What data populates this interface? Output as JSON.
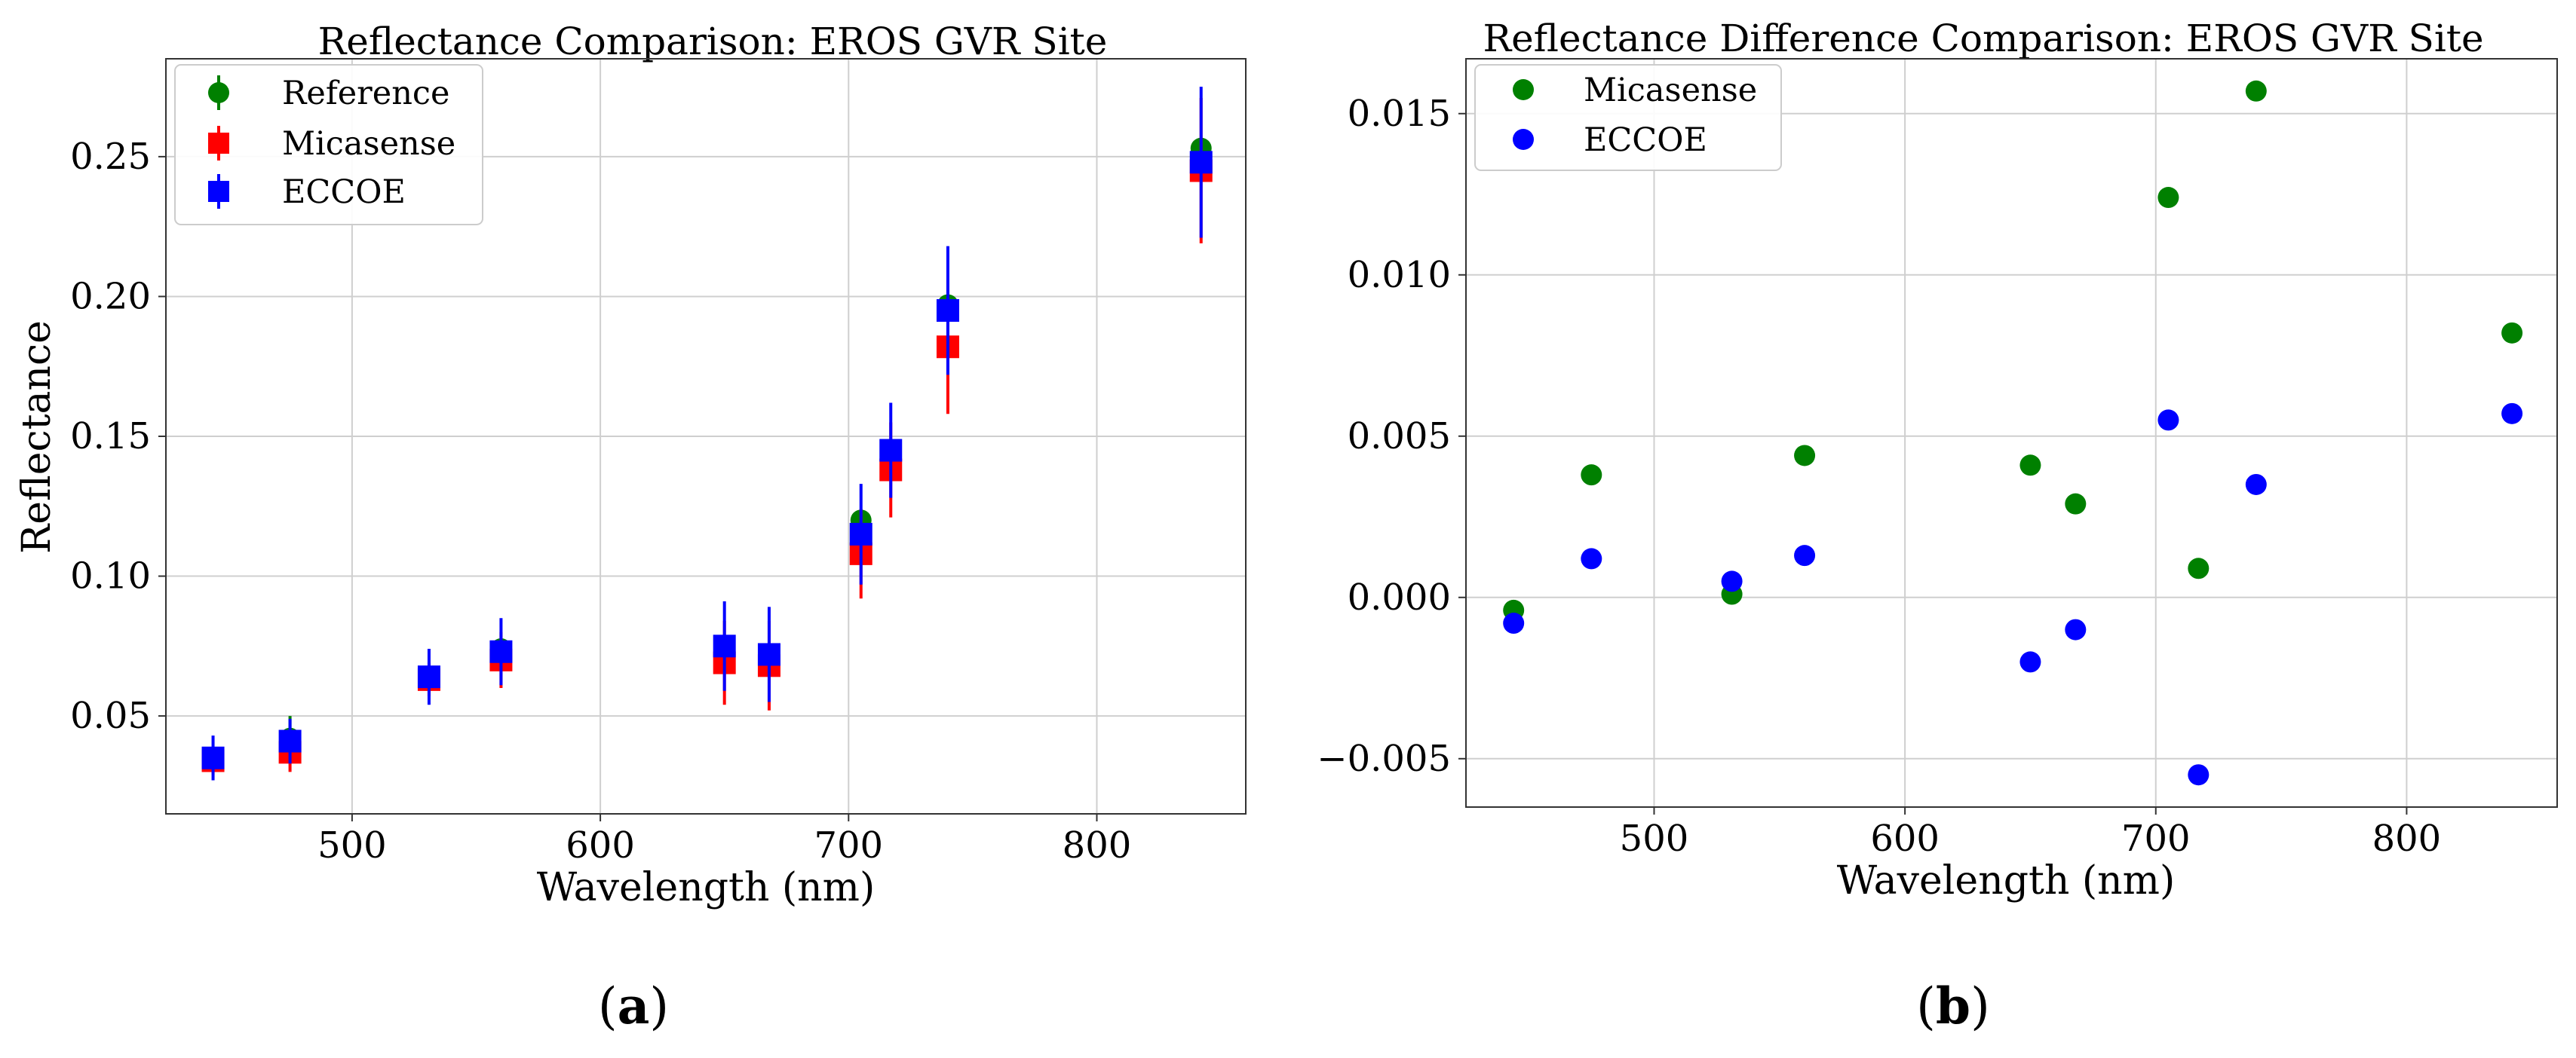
{
  "chart_data": [
    {
      "type": "scatter",
      "panel_label": "a",
      "title": "Reflectance Comparison: EROS GVR Site",
      "xlabel": "Wavelength (nm)",
      "ylabel": "Reflectance",
      "xlim": [
        425,
        860
      ],
      "ylim": [
        0.015,
        0.285
      ],
      "xticks": [
        500,
        600,
        700,
        800
      ],
      "yticks": [
        0.05,
        0.1,
        0.15,
        0.2,
        0.25
      ],
      "xtick_labels": [
        "500",
        "600",
        "700",
        "800"
      ],
      "ytick_labels": [
        "0.05",
        "0.10",
        "0.15",
        "0.20",
        "0.25"
      ],
      "grid": true,
      "legend_position": "top-left",
      "x": [
        444,
        475,
        531,
        560,
        650,
        668,
        705,
        717,
        740,
        842
      ],
      "series": [
        {
          "name": "Reference",
          "marker": "circle",
          "color": "#008000",
          "values": [
            0.034,
            0.042,
            0.064,
            0.074,
            0.072,
            0.07,
            0.12,
            0.142,
            0.197,
            0.253
          ],
          "errors": [
            0,
            0.008,
            0,
            0,
            0,
            0,
            0,
            0,
            0,
            0
          ]
        },
        {
          "name": "Micasense",
          "marker": "square",
          "color": "#ff0000",
          "values": [
            0.034,
            0.037,
            0.063,
            0.07,
            0.069,
            0.068,
            0.108,
            0.138,
            0.182,
            0.245
          ],
          "errors": [
            0.005,
            0.007,
            0.006,
            0.01,
            0.015,
            0.016,
            0.016,
            0.017,
            0.024,
            0.026
          ]
        },
        {
          "name": "ECCOE",
          "marker": "square",
          "color": "#0000ff",
          "values": [
            0.035,
            0.041,
            0.064,
            0.073,
            0.075,
            0.072,
            0.115,
            0.145,
            0.195,
            0.248
          ],
          "errors": [
            0.008,
            0.008,
            0.01,
            0.012,
            0.016,
            0.017,
            0.018,
            0.017,
            0.023,
            0.027
          ]
        }
      ]
    },
    {
      "type": "scatter",
      "panel_label": "b",
      "title": "Reflectance Difference Comparison: EROS GVR Site",
      "xlabel": "Wavelength (nm)",
      "ylabel": "",
      "xlim": [
        425,
        860
      ],
      "ylim": [
        -0.0065,
        0.0167
      ],
      "xticks": [
        500,
        600,
        700,
        800
      ],
      "yticks": [
        -0.005,
        0.0,
        0.005,
        0.01,
        0.015
      ],
      "xtick_labels": [
        "500",
        "600",
        "700",
        "800"
      ],
      "ytick_labels": [
        "−0.005",
        "0.000",
        "0.005",
        "0.010",
        "0.015"
      ],
      "grid": true,
      "legend_position": "top-left",
      "x": [
        444,
        475,
        531,
        560,
        650,
        668,
        705,
        717,
        740,
        842
      ],
      "series": [
        {
          "name": "Micasense",
          "marker": "circle",
          "color": "#008000",
          "values": [
            -0.0004,
            0.0038,
            0.0001,
            0.0044,
            0.0041,
            0.0029,
            0.0124,
            0.0009,
            0.0157,
            0.0082
          ]
        },
        {
          "name": "ECCOE",
          "marker": "circle",
          "color": "#0000ff",
          "values": [
            -0.0008,
            0.0012,
            0.0005,
            0.0013,
            -0.002,
            -0.001,
            0.0055,
            -0.0055,
            0.0035,
            0.0057
          ]
        }
      ]
    }
  ]
}
